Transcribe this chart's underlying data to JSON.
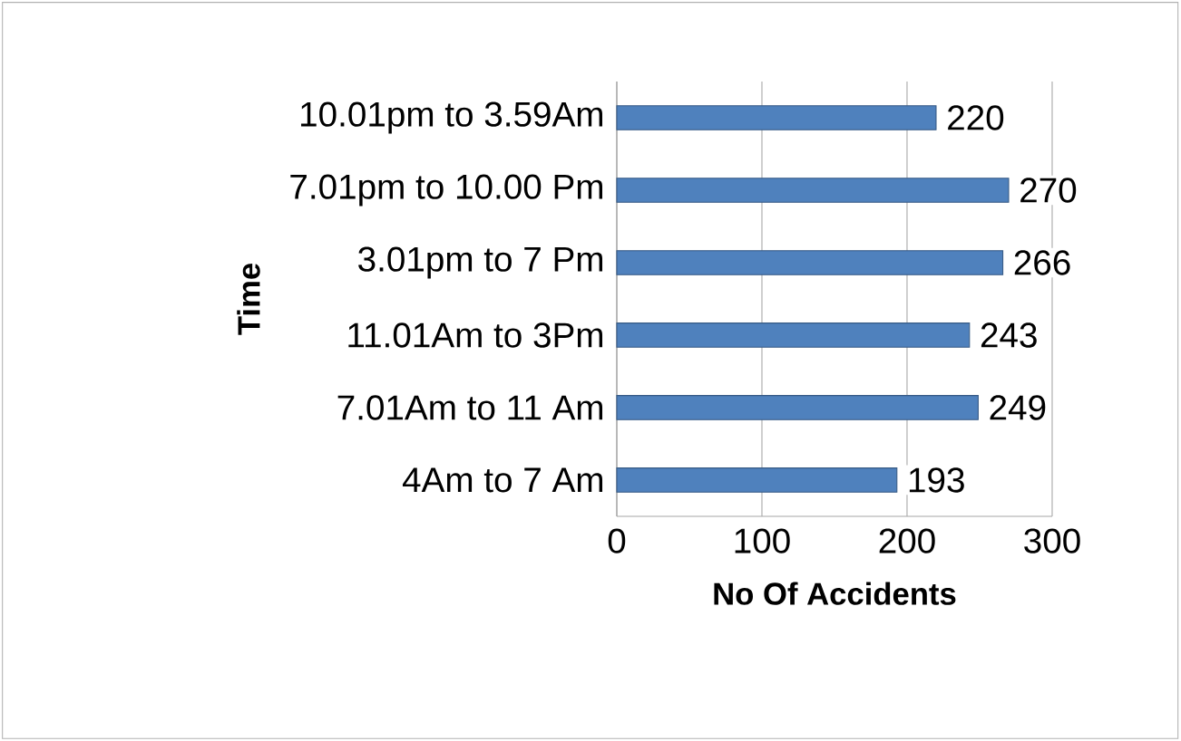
{
  "chart_data": {
    "type": "bar",
    "orientation": "horizontal",
    "xlabel": "No Of Accidents",
    "ylabel": "Time",
    "categories": [
      "10.01pm to 3.59Am",
      "7.01pm to 10.00 Pm",
      "3.01pm to 7 Pm",
      "11.01Am to 3Pm",
      "7.01Am to 11 Am",
      "4Am to 7 Am"
    ],
    "values": [
      220,
      270,
      266,
      243,
      249,
      193
    ],
    "color": "#4f81bd",
    "xlim": [
      0,
      300
    ],
    "xticks": [
      0,
      100,
      200,
      300
    ],
    "grid": "x",
    "data_labels": true
  }
}
